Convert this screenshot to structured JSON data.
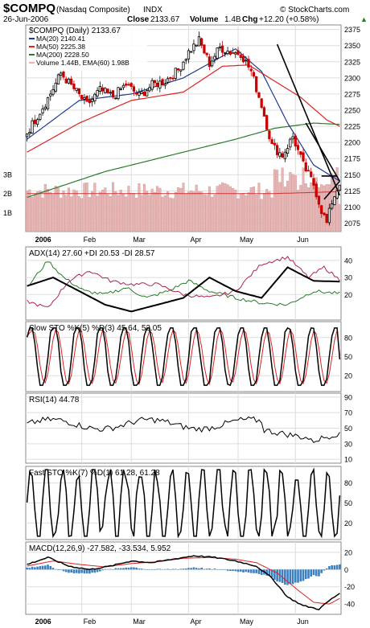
{
  "header": {
    "symbol": "$COMPQ",
    "name": "(Nasdaq Composite)",
    "exchange": "INDX",
    "watermark": "© StockCharts.com",
    "date": "26-Jun-2006",
    "close_label": "Close",
    "close_value": "2133.67",
    "volume_label": "Volume",
    "volume_value": "1.4B",
    "chg_label": "Chg",
    "chg_value": "+12.20 (+0.58%)",
    "chg_arrow": "▲"
  },
  "colors": {
    "price": "#000000",
    "up_candle": "#000000",
    "down_candle": "#cc0000",
    "ma20": "#1f3a93",
    "ma50": "#dd2222",
    "ma200": "#2a7a2a",
    "volume": "#e8b4b4",
    "volume_ema": "#cc3333",
    "adx": "#000000",
    "plus_di": "#2a7a2a",
    "minus_di": "#aa2255",
    "k_line": "#000000",
    "d_line": "#dd2222",
    "rsi": "#000000",
    "macd": "#000000",
    "signal": "#dd2222",
    "histogram": "#3a7fc0"
  },
  "chart_data": [
    {
      "type": "candlestick",
      "panel": "price",
      "title": "$COMPQ (Daily) 2133.67",
      "legend": [
        {
          "label": "MA(20) 2140.41",
          "color": "#1f3a93"
        },
        {
          "label": "MA(50) 2225.38",
          "color": "#dd2222"
        },
        {
          "label": "MA(200) 2228.50",
          "color": "#2a7a2a"
        },
        {
          "label": "Volume 1.44B, EMA(60) 1.98B",
          "color": "#e8b4b4"
        }
      ],
      "y_ticks": [
        2075,
        2100,
        2125,
        2150,
        2175,
        2200,
        2225,
        2250,
        2275,
        2300,
        2325,
        2350,
        2375
      ],
      "ylim": [
        2062,
        2382
      ],
      "volume_ticks": [
        "1B",
        "2B",
        "3B"
      ],
      "x_labels": [
        "2006",
        "Feb",
        "Mar",
        "Apr",
        "May",
        "Jun"
      ],
      "trading_days": 121,
      "close_keys": [
        [
          0,
          2215
        ],
        [
          8,
          2268
        ],
        [
          13,
          2307
        ],
        [
          18,
          2283
        ],
        [
          23,
          2258
        ],
        [
          28,
          2281
        ],
        [
          33,
          2271
        ],
        [
          38,
          2290
        ],
        [
          43,
          2272
        ],
        [
          48,
          2289
        ],
        [
          53,
          2295
        ],
        [
          58,
          2312
        ],
        [
          62,
          2340
        ],
        [
          66,
          2358
        ],
        [
          70,
          2322
        ],
        [
          74,
          2347
        ],
        [
          78,
          2340
        ],
        [
          82,
          2338
        ],
        [
          86,
          2310
        ],
        [
          90,
          2258
        ],
        [
          94,
          2195
        ],
        [
          98,
          2180
        ],
        [
          102,
          2209
        ],
        [
          106,
          2165
        ],
        [
          110,
          2135
        ],
        [
          113,
          2095
        ],
        [
          115,
          2075
        ],
        [
          117,
          2108
        ],
        [
          119,
          2128
        ],
        [
          120,
          2134
        ]
      ],
      "ma20_keys": [
        [
          0,
          2205
        ],
        [
          20,
          2265
        ],
        [
          40,
          2275
        ],
        [
          60,
          2300
        ],
        [
          80,
          2345
        ],
        [
          90,
          2310
        ],
        [
          100,
          2230
        ],
        [
          110,
          2165
        ],
        [
          120,
          2140
        ]
      ],
      "ma50_keys": [
        [
          0,
          2185
        ],
        [
          20,
          2230
        ],
        [
          40,
          2265
        ],
        [
          60,
          2278
        ],
        [
          75,
          2318
        ],
        [
          85,
          2320
        ],
        [
          95,
          2295
        ],
        [
          105,
          2270
        ],
        [
          115,
          2235
        ],
        [
          120,
          2225
        ]
      ],
      "ma200_keys": [
        [
          0,
          2115
        ],
        [
          30,
          2155
        ],
        [
          60,
          2185
        ],
        [
          80,
          2205
        ],
        [
          95,
          2222
        ],
        [
          110,
          2230
        ],
        [
          120,
          2228
        ]
      ],
      "trendlines": [
        [
          [
            96,
            2352
          ],
          [
            120,
            2118
          ]
        ],
        [
          [
            107,
            2230
          ],
          [
            120,
            2140
          ]
        ],
        [
          [
            113,
            2148
          ],
          [
            119,
            2148
          ]
        ],
        [
          [
            114,
            2112
          ],
          [
            120,
            2140
          ]
        ]
      ]
    },
    {
      "type": "line",
      "panel": "adx",
      "label": "ADX(14) 27.60 +DI 20.53 -DI 28.57",
      "series": [
        {
          "name": "ADX(14)",
          "value": 27.6
        },
        {
          "name": "+DI",
          "value": 20.53
        },
        {
          "name": "-DI",
          "value": 28.57
        }
      ],
      "y_ticks": [
        20,
        30,
        40
      ],
      "ylim": [
        5,
        48
      ],
      "adx_keys": [
        [
          0,
          25
        ],
        [
          10,
          30
        ],
        [
          20,
          22
        ],
        [
          30,
          14
        ],
        [
          40,
          10
        ],
        [
          50,
          14
        ],
        [
          60,
          18
        ],
        [
          70,
          30
        ],
        [
          80,
          22
        ],
        [
          90,
          18
        ],
        [
          100,
          36
        ],
        [
          110,
          28
        ],
        [
          120,
          27.6
        ]
      ],
      "pdi_keys": [
        [
          0,
          24
        ],
        [
          8,
          40
        ],
        [
          14,
          30
        ],
        [
          22,
          22
        ],
        [
          30,
          20
        ],
        [
          38,
          24
        ],
        [
          46,
          18
        ],
        [
          54,
          22
        ],
        [
          62,
          28
        ],
        [
          70,
          22
        ],
        [
          80,
          18
        ],
        [
          90,
          15
        ],
        [
          100,
          14
        ],
        [
          110,
          22
        ],
        [
          120,
          20.5
        ]
      ],
      "mdi_keys": [
        [
          0,
          16
        ],
        [
          8,
          12
        ],
        [
          16,
          28
        ],
        [
          24,
          34
        ],
        [
          32,
          28
        ],
        [
          40,
          26
        ],
        [
          50,
          26
        ],
        [
          60,
          20
        ],
        [
          70,
          18
        ],
        [
          80,
          22
        ],
        [
          90,
          38
        ],
        [
          100,
          42
        ],
        [
          108,
          30
        ],
        [
          114,
          36
        ],
        [
          120,
          28.6
        ]
      ]
    },
    {
      "type": "line",
      "panel": "slow_sto",
      "label": "Slow STO %K(5) %D(3) 45.64, 52.05",
      "series": [
        {
          "name": "%K(5)",
          "value": 45.64
        },
        {
          "name": "%D(3)",
          "value": 52.05
        }
      ],
      "y_ticks": [
        20,
        50,
        80
      ],
      "ylim": [
        -5,
        105
      ]
    },
    {
      "type": "line",
      "panel": "rsi",
      "label": "RSI(14) 44.78",
      "series": [
        {
          "name": "RSI(14)",
          "value": 44.78
        }
      ],
      "y_ticks": [
        10,
        30,
        50,
        70,
        90
      ],
      "ylim": [
        5,
        95
      ]
    },
    {
      "type": "line",
      "panel": "fast_sto",
      "label": "Fast STO %K(7) %D(1) 61.28, 61.28",
      "series": [
        {
          "name": "%K(7)",
          "value": 61.28
        },
        {
          "name": "%D(1)",
          "value": 61.28
        }
      ],
      "y_ticks": [
        20,
        50,
        80
      ],
      "ylim": [
        -5,
        105
      ]
    },
    {
      "type": "line",
      "panel": "macd",
      "label": "MACD(12,26,9) -27.582, -33.534, 5.952",
      "series": [
        {
          "name": "MACD",
          "value": -27.582
        },
        {
          "name": "Signal",
          "value": -33.534
        },
        {
          "name": "Histogram",
          "value": 5.952
        }
      ],
      "y_ticks": [
        -40,
        -20,
        0,
        20
      ],
      "ylim": [
        -52,
        32
      ],
      "macd_keys": [
        [
          0,
          6
        ],
        [
          8,
          14
        ],
        [
          16,
          4
        ],
        [
          24,
          0
        ],
        [
          32,
          4
        ],
        [
          40,
          10
        ],
        [
          48,
          8
        ],
        [
          56,
          12
        ],
        [
          64,
          16
        ],
        [
          72,
          14
        ],
        [
          80,
          10
        ],
        [
          88,
          4
        ],
        [
          94,
          -10
        ],
        [
          100,
          -32
        ],
        [
          106,
          -42
        ],
        [
          112,
          -46
        ],
        [
          116,
          -36
        ],
        [
          120,
          -27.6
        ]
      ],
      "signal_keys": [
        [
          0,
          4
        ],
        [
          10,
          10
        ],
        [
          20,
          6
        ],
        [
          30,
          3
        ],
        [
          40,
          7
        ],
        [
          50,
          9
        ],
        [
          60,
          13
        ],
        [
          70,
          14
        ],
        [
          80,
          12
        ],
        [
          88,
          8
        ],
        [
          96,
          -4
        ],
        [
          104,
          -24
        ],
        [
          110,
          -38
        ],
        [
          116,
          -40
        ],
        [
          120,
          -33.5
        ]
      ],
      "x_labels": [
        "2006",
        "Feb",
        "Mar",
        "Apr",
        "May",
        "Jun"
      ]
    }
  ]
}
